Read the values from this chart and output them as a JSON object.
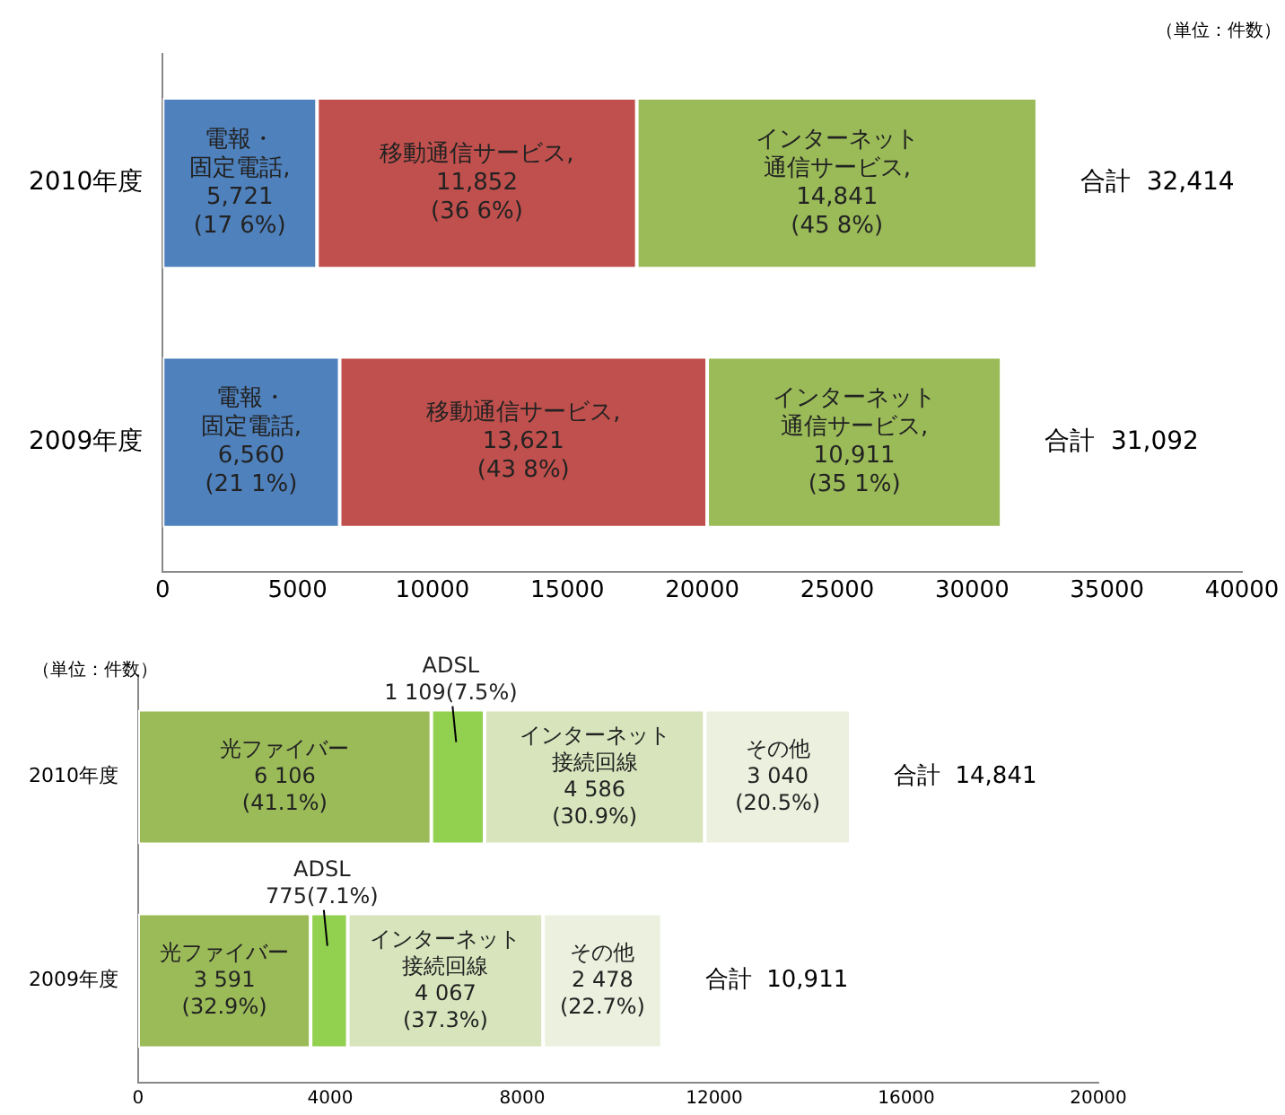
{
  "chart_data": [
    {
      "type": "bar",
      "orientation": "horizontal",
      "stacked": true,
      "categories": [
        "2010年度",
        "2009年度"
      ],
      "series": [
        {
          "name": "電報・固定電話,",
          "color": "#4f81bd",
          "values": [
            5721,
            6560
          ],
          "value_labels": [
            "5,721\n(17 6%)",
            "6,560\n(21 1%)"
          ]
        },
        {
          "name": "移動通信サービス,",
          "color": "#c0504d",
          "values": [
            11852,
            13621
          ],
          "value_labels": [
            "11,852\n(36 6%)",
            "13,621\n(43 8%)"
          ]
        },
        {
          "name": "インターネット通信サービス,",
          "color": "#9bbb59",
          "values": [
            14841,
            10911
          ],
          "value_labels": [
            "14,841\n(45 8%)",
            "10,911\n(35 1%)"
          ]
        }
      ],
      "totals": [
        "合計  32,414",
        "合計  31,092"
      ],
      "xlim": [
        0,
        40000
      ],
      "xticks": [
        0,
        5000,
        10000,
        15000,
        20000,
        25000,
        30000,
        35000,
        40000
      ],
      "grid": false,
      "legend": false,
      "annotations": [
        "（単位：件数）"
      ]
    },
    {
      "type": "bar",
      "orientation": "horizontal",
      "stacked": true,
      "categories": [
        "2010年度",
        "2009年度"
      ],
      "series": [
        {
          "name": "光ファイバー",
          "color": "#9bbb59",
          "values": [
            6106,
            3591
          ],
          "value_labels": [
            "6 106\n(41.1%)",
            "3 591\n(32.9%)"
          ]
        },
        {
          "name": "ADSL",
          "color": "#92d050",
          "values": [
            1109,
            775
          ],
          "value_labels": [
            "1 109(7.5%)",
            "775(7.1%)"
          ]
        },
        {
          "name": "インターネット接続回線",
          "color": "#d7e4bc",
          "values": [
            4586,
            4067
          ],
          "value_labels": [
            "4 586\n(30.9%)",
            "4 067\n(37.3%)"
          ]
        },
        {
          "name": "その他",
          "color": "#ebf1de",
          "values": [
            3040,
            2478
          ],
          "value_labels": [
            "3 040\n(20.5%)",
            "2 478\n(22.7%)"
          ]
        }
      ],
      "totals": [
        "合計  14,841",
        "合計  10,911"
      ],
      "xlim": [
        0,
        20000
      ],
      "xticks": [
        0,
        4000,
        8000,
        12000,
        16000,
        20000
      ],
      "grid": false,
      "legend": false,
      "annotations": [
        "（単位：件数）"
      ]
    }
  ]
}
